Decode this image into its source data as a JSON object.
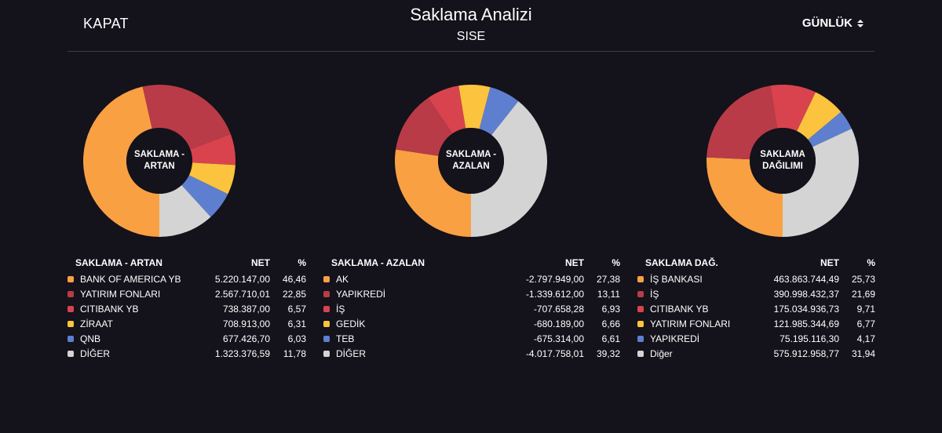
{
  "header": {
    "close_label": "KAPAT",
    "title": "Saklama Analizi",
    "subtitle": "SISE",
    "period_label": "GÜNLÜK"
  },
  "panels": [
    {
      "center_label": "SAKLAMA - ARTAN",
      "table_title": "SAKLAMA - ARTAN",
      "net_header": "NET",
      "pct_header": "%",
      "rows": [
        {
          "name": "BANK OF AMERICA YB",
          "net": "5.220.147,00",
          "pct": "46,46",
          "color": "#f9a043"
        },
        {
          "name": "YATIRIM FONLARI",
          "net": "2.567.710,01",
          "pct": "22,85",
          "color": "#b93b47"
        },
        {
          "name": "CITIBANK YB",
          "net": "738.387,00",
          "pct": "6,57",
          "color": "#d9434e"
        },
        {
          "name": "ZİRAAT",
          "net": "708.913,00",
          "pct": "6,31",
          "color": "#fbc33e"
        },
        {
          "name": "QNB",
          "net": "677.426,70",
          "pct": "6,03",
          "color": "#5e7fcf"
        },
        {
          "name": "DİĞER",
          "net": "1.323.376,59",
          "pct": "11,78",
          "color": "#d4d4d4"
        }
      ]
    },
    {
      "center_label": "SAKLAMA - AZALAN",
      "table_title": "SAKLAMA - AZALAN",
      "net_header": "NET",
      "pct_header": "%",
      "rows": [
        {
          "name": "AK",
          "net": "-2.797.949,00",
          "pct": "27,38",
          "color": "#f9a043"
        },
        {
          "name": "YAPIKREDİ",
          "net": "-1.339.612,00",
          "pct": "13,11",
          "color": "#b93b47"
        },
        {
          "name": "İŞ",
          "net": "-707.658,28",
          "pct": "6,93",
          "color": "#d9434e"
        },
        {
          "name": "GEDİK",
          "net": "-680.189,00",
          "pct": "6,66",
          "color": "#fbc33e"
        },
        {
          "name": "TEB",
          "net": "-675.314,00",
          "pct": "6,61",
          "color": "#5e7fcf"
        },
        {
          "name": "DİĞER",
          "net": "-4.017.758,01",
          "pct": "39,32",
          "color": "#d4d4d4"
        }
      ]
    },
    {
      "center_label": "SAKLAMA DAĞILIMI",
      "table_title": "SAKLAMA DAĞ.",
      "net_header": "NET",
      "pct_header": "%",
      "rows": [
        {
          "name": "İŞ BANKASI",
          "net": "463.863.744,49",
          "pct": "25,73",
          "color": "#f9a043"
        },
        {
          "name": "İŞ",
          "net": "390.998.432,37",
          "pct": "21,69",
          "color": "#b93b47"
        },
        {
          "name": "CITIBANK YB",
          "net": "175.034.936,73",
          "pct": "9,71",
          "color": "#d9434e"
        },
        {
          "name": "YATIRIM FONLARI",
          "net": "121.985.344,69",
          "pct": "6,77",
          "color": "#fbc33e"
        },
        {
          "name": "YAPIKREDİ",
          "net": "75.195.116,30",
          "pct": "4,17",
          "color": "#5e7fcf"
        },
        {
          "name": "Diğer",
          "net": "575.912.958,77",
          "pct": "31,94",
          "color": "#d4d4d4"
        }
      ]
    }
  ]
}
